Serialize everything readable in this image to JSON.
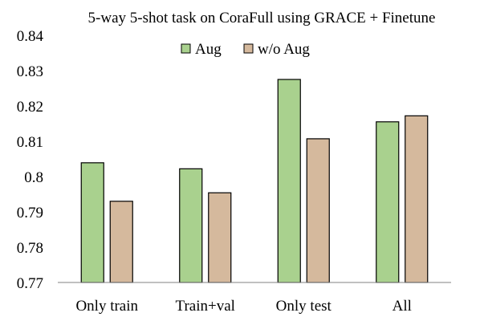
{
  "chart_data": {
    "type": "bar",
    "title": "5-way 5-shot task on CoraFull using GRACE + Finetune",
    "xlabel": "",
    "ylabel": "",
    "categories": [
      "Only train",
      "Train+val",
      "Only test",
      "All"
    ],
    "series": [
      {
        "name": "Aug",
        "values": [
          0.8039,
          0.8022,
          0.8275,
          0.8155
        ],
        "color": "#a9d18e"
      },
      {
        "name": "w/o Aug",
        "values": [
          0.793,
          0.7954,
          0.8107,
          0.8172
        ],
        "color": "#d5b99d"
      }
    ],
    "ylim": [
      0.77,
      0.84
    ],
    "yticks": [
      0.77,
      0.78,
      0.79,
      0.8,
      0.81,
      0.82,
      0.83,
      0.84
    ],
    "ytick_labels": [
      "0.77",
      "0.78",
      "0.79",
      "0.8",
      "0.81",
      "0.82",
      "0.83",
      "0.84"
    ],
    "grid": false,
    "legend": {
      "position": "top-center"
    },
    "bar_outline_color": "#000000",
    "axis_color": "#808080"
  }
}
